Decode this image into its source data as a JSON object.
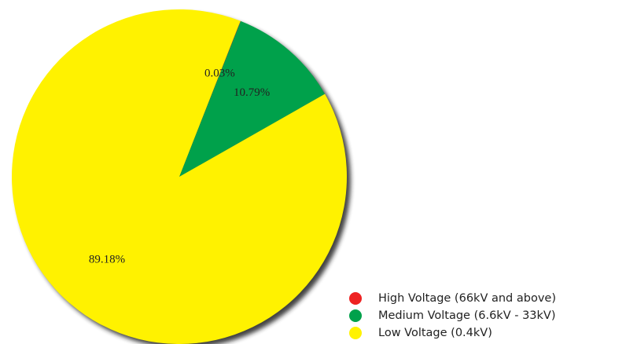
{
  "chart_data": {
    "type": "pie",
    "categories": [
      "High Voltage (66kV and above)",
      "Medium Voltage (6.6kV - 33kV)",
      "Low Voltage (0.4kV)"
    ],
    "values": [
      0.03,
      10.79,
      89.18
    ],
    "value_labels": [
      "0.03%",
      "10.79%",
      "89.18%"
    ],
    "colors": [
      "#ee2222",
      "#00a14b",
      "#fff200"
    ],
    "legend": "bottom-right"
  }
}
